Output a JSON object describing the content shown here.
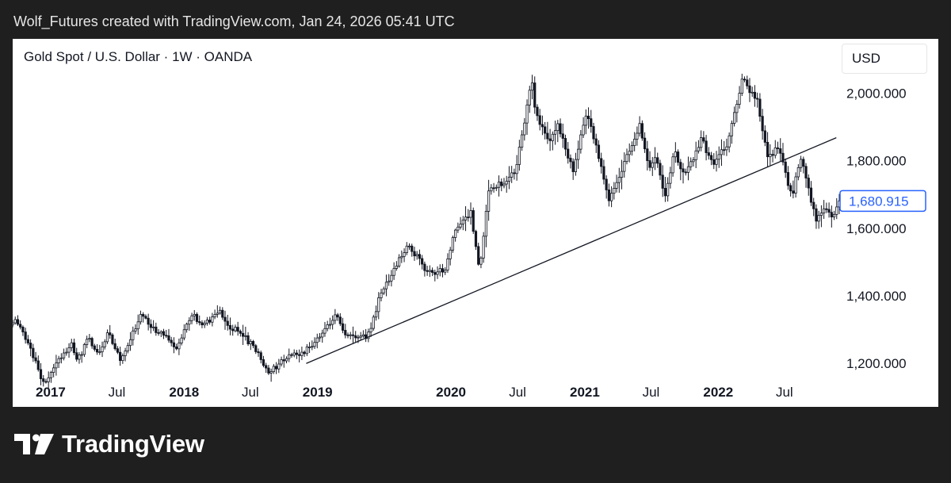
{
  "credit": "Wolf_Futures created with TradingView.com, Jan 24, 2026 05:41 UTC",
  "brand": {
    "name": "TradingView"
  },
  "colors": {
    "candle": "#131722",
    "price_line": "#2962ff",
    "trendline": "#131722"
  },
  "chart_data": {
    "type": "candlestick",
    "title": "Gold Spot / U.S. Dollar · 1W · OANDA",
    "currency": "USD",
    "interval": "1W",
    "y_ticks": [
      "2,000.000",
      "1,800.000",
      "1,600.000",
      "1,400.000",
      "1,200.000"
    ],
    "y_tick_values": [
      2000,
      1800,
      1600,
      1400,
      1200
    ],
    "ylim": [
      1163,
      2090
    ],
    "x_ticks": [
      {
        "label": "2017",
        "date": "2017-01-01",
        "bold": true
      },
      {
        "label": "Jul",
        "date": "2017-07-01",
        "bold": false
      },
      {
        "label": "2018",
        "date": "2018-01-01",
        "bold": true
      },
      {
        "label": "Jul",
        "date": "2018-07-01",
        "bold": false
      },
      {
        "label": "2019",
        "date": "2019-01-01",
        "bold": true
      },
      {
        "label": "2020",
        "date": "2020-01-01",
        "bold": true
      },
      {
        "label": "Jul",
        "date": "2020-07-01",
        "bold": false
      },
      {
        "label": "2021",
        "date": "2021-01-01",
        "bold": true
      },
      {
        "label": "Jul",
        "date": "2021-07-01",
        "bold": false
      },
      {
        "label": "2022",
        "date": "2022-01-01",
        "bold": true
      },
      {
        "label": "Jul",
        "date": "2022-07-01",
        "bold": false
      }
    ],
    "xlim": [
      "2016-09-19",
      "2022-11-28"
    ],
    "last_price": {
      "label": "1,680.915",
      "value": 1680.915
    },
    "trendline": {
      "start": {
        "date": "2018-12-01",
        "price": 1200
      },
      "end": {
        "date": "2022-11-20",
        "price": 1868
      }
    },
    "close_path": [
      [
        "2016-10-01",
        1325
      ],
      [
        "2016-11-14",
        1225
      ],
      [
        "2016-12-15",
        1132
      ],
      [
        "2017-01-15",
        1200
      ],
      [
        "2017-02-27",
        1255
      ],
      [
        "2017-03-15",
        1205
      ],
      [
        "2017-04-15",
        1280
      ],
      [
        "2017-05-10",
        1225
      ],
      [
        "2017-06-06",
        1290
      ],
      [
        "2017-07-10",
        1215
      ],
      [
        "2017-09-08",
        1345
      ],
      [
        "2017-10-15",
        1290
      ],
      [
        "2017-11-15",
        1285
      ],
      [
        "2017-12-12",
        1242
      ],
      [
        "2018-01-25",
        1355
      ],
      [
        "2018-02-10",
        1315
      ],
      [
        "2018-03-01",
        1320
      ],
      [
        "2018-04-11",
        1355
      ],
      [
        "2018-05-01",
        1305
      ],
      [
        "2018-06-01",
        1295
      ],
      [
        "2018-07-15",
        1240
      ],
      [
        "2018-08-16",
        1175
      ],
      [
        "2018-09-15",
        1195
      ],
      [
        "2018-10-15",
        1225
      ],
      [
        "2018-11-15",
        1220
      ],
      [
        "2018-12-15",
        1255
      ],
      [
        "2019-01-31",
        1320
      ],
      [
        "2019-02-20",
        1340
      ],
      [
        "2019-03-15",
        1295
      ],
      [
        "2019-04-23",
        1270
      ],
      [
        "2019-05-20",
        1285
      ],
      [
        "2019-06-25",
        1415
      ],
      [
        "2019-08-10",
        1500
      ],
      [
        "2019-09-04",
        1555
      ],
      [
        "2019-10-15",
        1490
      ],
      [
        "2019-11-12",
        1460
      ],
      [
        "2019-12-15",
        1480
      ],
      [
        "2020-01-08",
        1580
      ],
      [
        "2020-02-24",
        1645
      ],
      [
        "2020-03-19",
        1475
      ],
      [
        "2020-04-14",
        1720
      ],
      [
        "2020-05-20",
        1735
      ],
      [
        "2020-06-25",
        1770
      ],
      [
        "2020-07-30",
        1980
      ],
      [
        "2020-08-07",
        2050
      ],
      [
        "2020-08-20",
        1940
      ],
      [
        "2020-09-24",
        1860
      ],
      [
        "2020-10-20",
        1905
      ],
      [
        "2020-11-30",
        1770
      ],
      [
        "2021-01-06",
        1950
      ],
      [
        "2021-02-15",
        1780
      ],
      [
        "2021-03-08",
        1685
      ],
      [
        "2021-04-15",
        1780
      ],
      [
        "2021-06-01",
        1905
      ],
      [
        "2021-06-25",
        1770
      ],
      [
        "2021-07-15",
        1820
      ],
      [
        "2021-08-09",
        1690
      ],
      [
        "2021-09-02",
        1830
      ],
      [
        "2021-10-01",
        1750
      ],
      [
        "2021-11-16",
        1865
      ],
      [
        "2021-12-15",
        1790
      ],
      [
        "2022-01-25",
        1845
      ],
      [
        "2022-03-08",
        2040
      ],
      [
        "2022-04-18",
        1975
      ],
      [
        "2022-05-15",
        1810
      ],
      [
        "2022-06-15",
        1840
      ],
      [
        "2022-07-21",
        1695
      ],
      [
        "2022-08-15",
        1805
      ],
      [
        "2022-09-26",
        1622
      ],
      [
        "2022-10-20",
        1660
      ],
      [
        "2022-11-10",
        1630
      ],
      [
        "2022-11-25",
        1681
      ]
    ]
  }
}
